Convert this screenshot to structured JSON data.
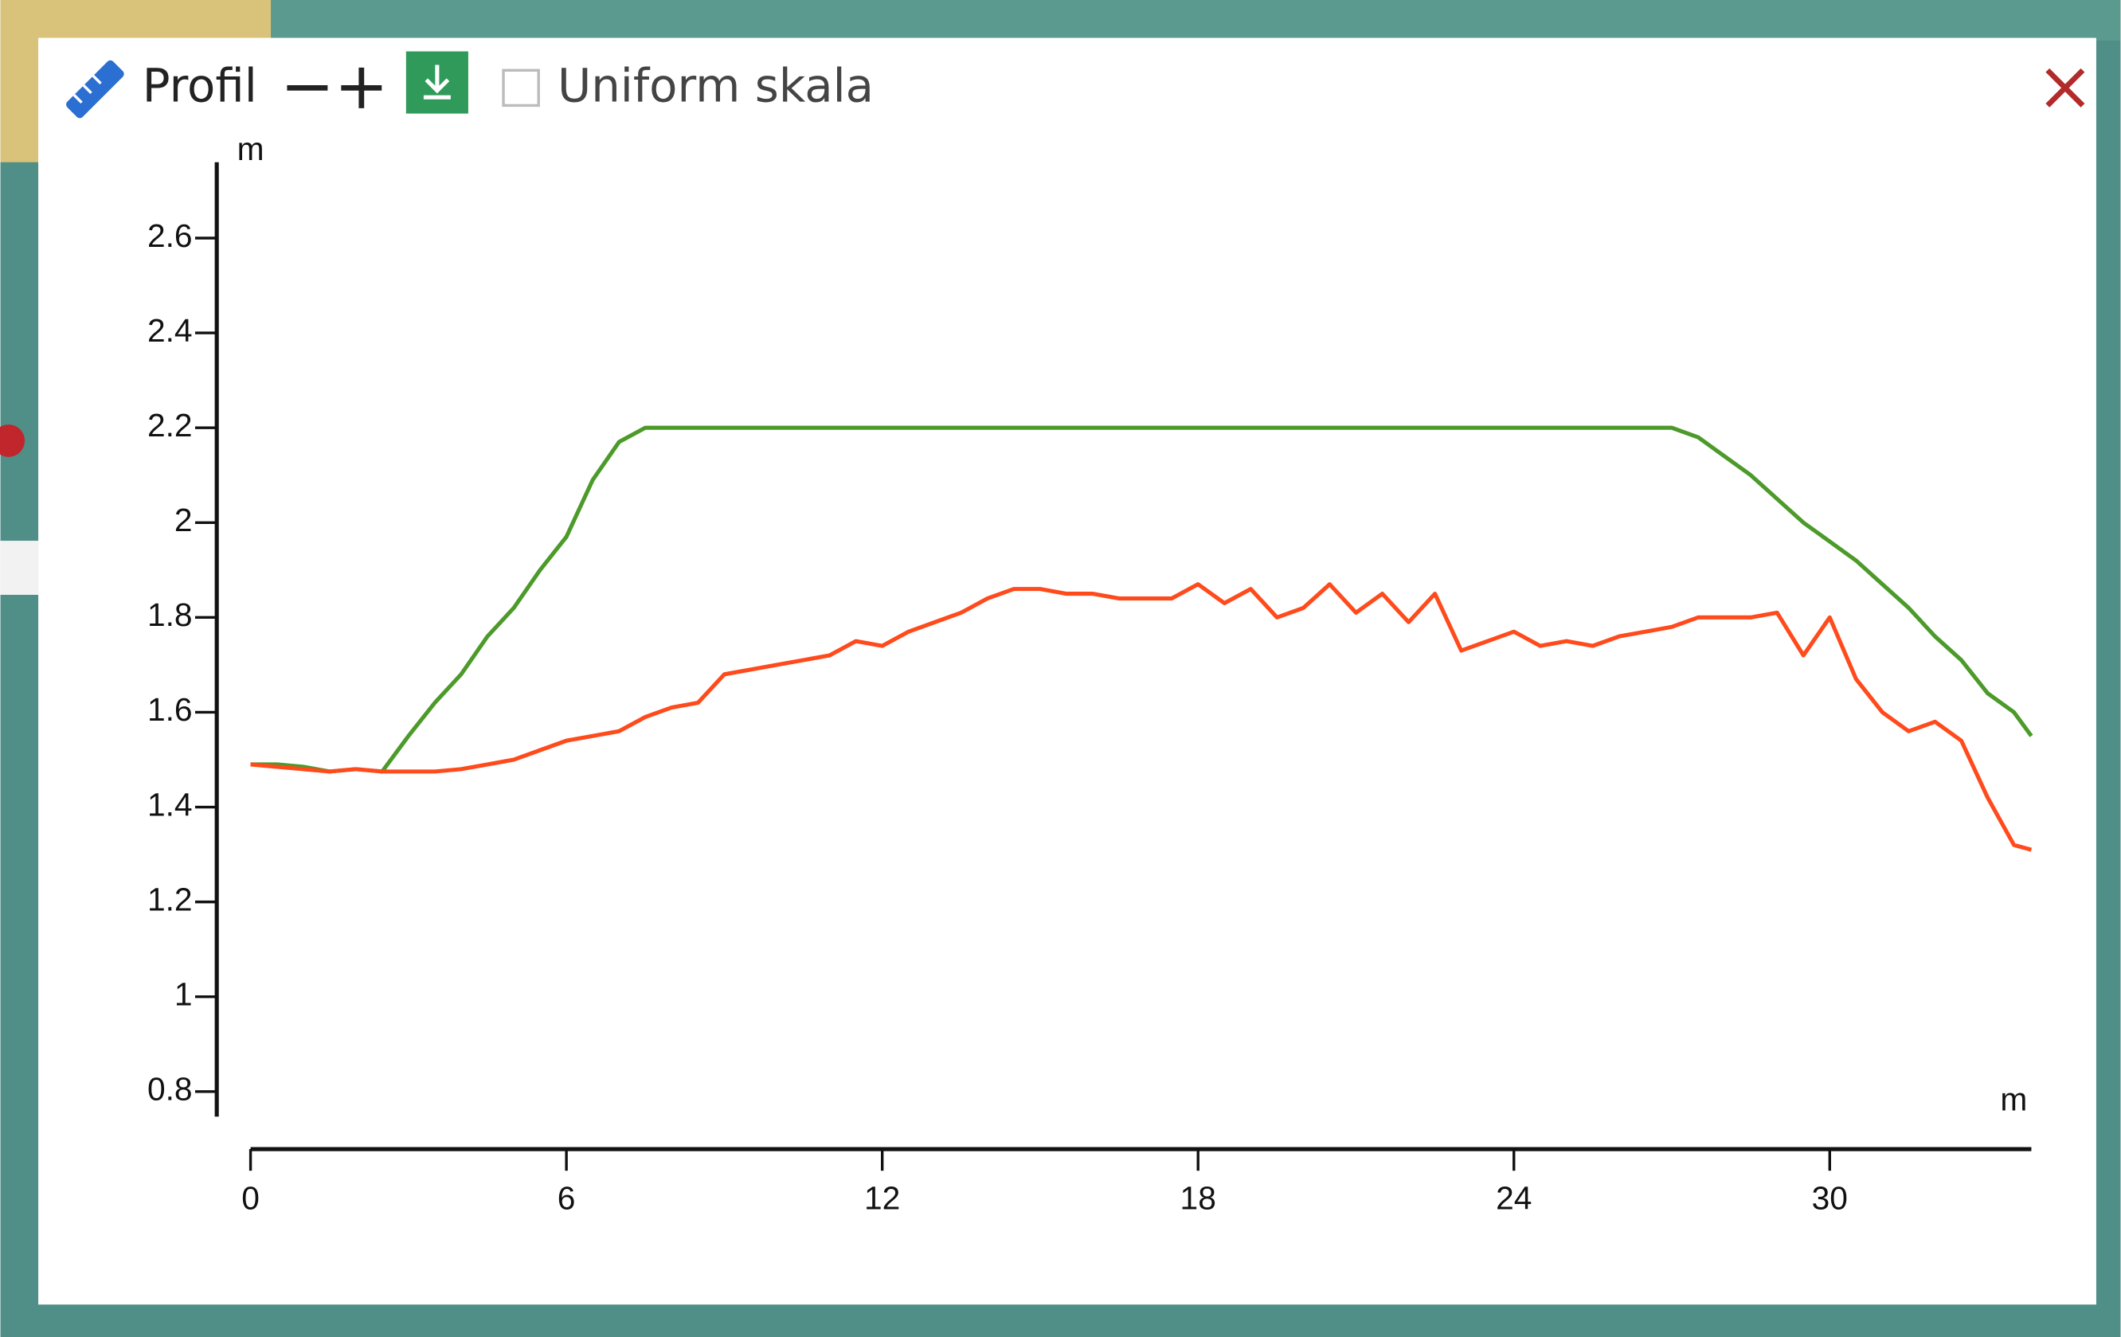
{
  "toolbar": {
    "title": "Profil",
    "checkbox_label": "Uniform skala",
    "checked": false
  },
  "chart_data": {
    "type": "line",
    "x_label": "m",
    "y_label": "m",
    "x": [
      0,
      0.5,
      1,
      1.5,
      2,
      2.5,
      3,
      3.5,
      4,
      4.5,
      5,
      5.5,
      6,
      6.5,
      7,
      7.5,
      8,
      8.5,
      9,
      9.5,
      10,
      10.5,
      11,
      11.5,
      12,
      12.5,
      13,
      13.5,
      14,
      14.5,
      15,
      15.5,
      16,
      16.5,
      17,
      17.5,
      18,
      18.5,
      19,
      19.5,
      20,
      20.5,
      21,
      21.5,
      22,
      22.5,
      23,
      23.5,
      24,
      24.5,
      25,
      25.5,
      26,
      26.5,
      27,
      27.5,
      28,
      28.5,
      29,
      29.5,
      30,
      30.5,
      31,
      31.5,
      32,
      32.5,
      33,
      33.5,
      33.83
    ],
    "series": [
      {
        "color": "#4c9a2a",
        "values": [
          1.49,
          1.49,
          1.485,
          1.475,
          1.48,
          1.475,
          1.55,
          1.62,
          1.68,
          1.76,
          1.82,
          1.9,
          1.97,
          2.09,
          2.17,
          2.2,
          2.2,
          2.2,
          2.2,
          2.2,
          2.2,
          2.2,
          2.2,
          2.2,
          2.2,
          2.2,
          2.2,
          2.2,
          2.2,
          2.2,
          2.2,
          2.2,
          2.2,
          2.2,
          2.2,
          2.2,
          2.2,
          2.2,
          2.2,
          2.2,
          2.2,
          2.2,
          2.2,
          2.2,
          2.2,
          2.2,
          2.2,
          2.2,
          2.2,
          2.2,
          2.2,
          2.2,
          2.2,
          2.2,
          2.2,
          2.18,
          2.14,
          2.1,
          2.05,
          2.0,
          1.96,
          1.92,
          1.87,
          1.82,
          1.76,
          1.71,
          1.64,
          1.6,
          1.55
        ]
      },
      {
        "color": "#ff4a1c",
        "values": [
          1.49,
          1.485,
          1.48,
          1.475,
          1.48,
          1.475,
          1.475,
          1.475,
          1.48,
          1.49,
          1.5,
          1.52,
          1.54,
          1.55,
          1.56,
          1.59,
          1.61,
          1.62,
          1.68,
          1.69,
          1.7,
          1.71,
          1.72,
          1.75,
          1.74,
          1.77,
          1.79,
          1.81,
          1.84,
          1.86,
          1.86,
          1.85,
          1.85,
          1.84,
          1.84,
          1.84,
          1.87,
          1.83,
          1.86,
          1.8,
          1.82,
          1.87,
          1.81,
          1.85,
          1.79,
          1.85,
          1.73,
          1.75,
          1.77,
          1.74,
          1.75,
          1.74,
          1.76,
          1.77,
          1.78,
          1.8,
          1.8,
          1.8,
          1.81,
          1.72,
          1.8,
          1.67,
          1.6,
          1.56,
          1.58,
          1.54,
          1.42,
          1.32,
          1.31
        ]
      }
    ],
    "xlim": [
      0,
      33.83
    ],
    "ylim": [
      0.75,
      2.76
    ],
    "xticks": [
      0,
      6,
      12,
      18,
      24,
      30
    ],
    "yticks": [
      0.8,
      1,
      1.2,
      1.4,
      1.6,
      1.8,
      2,
      2.2,
      2.4,
      2.6
    ]
  }
}
